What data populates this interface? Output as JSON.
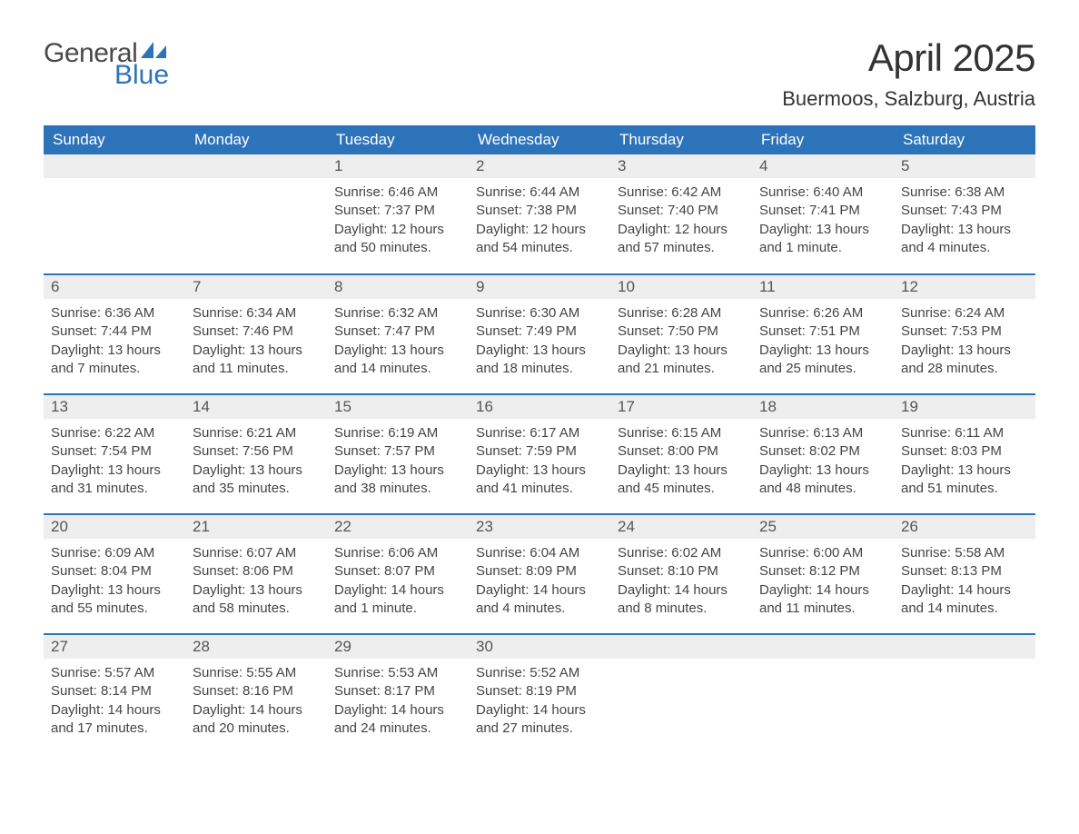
{
  "logo": {
    "word_general": "General",
    "word_blue": "Blue"
  },
  "title": {
    "month": "April 2025",
    "location": "Buermoos, Salzburg, Austria"
  },
  "colors": {
    "header_bg": "#2d73b9",
    "header_text": "#ffffff",
    "daynum_bg": "#eeeeee",
    "week_border": "#2d73b9",
    "body_text": "#444444",
    "page_bg": "#ffffff"
  },
  "calendar": {
    "day_headers": [
      "Sunday",
      "Monday",
      "Tuesday",
      "Wednesday",
      "Thursday",
      "Friday",
      "Saturday"
    ],
    "weeks": [
      [
        {
          "num": "",
          "sunrise": "",
          "sunset": "",
          "daylight": ""
        },
        {
          "num": "",
          "sunrise": "",
          "sunset": "",
          "daylight": ""
        },
        {
          "num": "1",
          "sunrise": "Sunrise: 6:46 AM",
          "sunset": "Sunset: 7:37 PM",
          "daylight": "Daylight: 12 hours and 50 minutes."
        },
        {
          "num": "2",
          "sunrise": "Sunrise: 6:44 AM",
          "sunset": "Sunset: 7:38 PM",
          "daylight": "Daylight: 12 hours and 54 minutes."
        },
        {
          "num": "3",
          "sunrise": "Sunrise: 6:42 AM",
          "sunset": "Sunset: 7:40 PM",
          "daylight": "Daylight: 12 hours and 57 minutes."
        },
        {
          "num": "4",
          "sunrise": "Sunrise: 6:40 AM",
          "sunset": "Sunset: 7:41 PM",
          "daylight": "Daylight: 13 hours and 1 minute."
        },
        {
          "num": "5",
          "sunrise": "Sunrise: 6:38 AM",
          "sunset": "Sunset: 7:43 PM",
          "daylight": "Daylight: 13 hours and 4 minutes."
        }
      ],
      [
        {
          "num": "6",
          "sunrise": "Sunrise: 6:36 AM",
          "sunset": "Sunset: 7:44 PM",
          "daylight": "Daylight: 13 hours and 7 minutes."
        },
        {
          "num": "7",
          "sunrise": "Sunrise: 6:34 AM",
          "sunset": "Sunset: 7:46 PM",
          "daylight": "Daylight: 13 hours and 11 minutes."
        },
        {
          "num": "8",
          "sunrise": "Sunrise: 6:32 AM",
          "sunset": "Sunset: 7:47 PM",
          "daylight": "Daylight: 13 hours and 14 minutes."
        },
        {
          "num": "9",
          "sunrise": "Sunrise: 6:30 AM",
          "sunset": "Sunset: 7:49 PM",
          "daylight": "Daylight: 13 hours and 18 minutes."
        },
        {
          "num": "10",
          "sunrise": "Sunrise: 6:28 AM",
          "sunset": "Sunset: 7:50 PM",
          "daylight": "Daylight: 13 hours and 21 minutes."
        },
        {
          "num": "11",
          "sunrise": "Sunrise: 6:26 AM",
          "sunset": "Sunset: 7:51 PM",
          "daylight": "Daylight: 13 hours and 25 minutes."
        },
        {
          "num": "12",
          "sunrise": "Sunrise: 6:24 AM",
          "sunset": "Sunset: 7:53 PM",
          "daylight": "Daylight: 13 hours and 28 minutes."
        }
      ],
      [
        {
          "num": "13",
          "sunrise": "Sunrise: 6:22 AM",
          "sunset": "Sunset: 7:54 PM",
          "daylight": "Daylight: 13 hours and 31 minutes."
        },
        {
          "num": "14",
          "sunrise": "Sunrise: 6:21 AM",
          "sunset": "Sunset: 7:56 PM",
          "daylight": "Daylight: 13 hours and 35 minutes."
        },
        {
          "num": "15",
          "sunrise": "Sunrise: 6:19 AM",
          "sunset": "Sunset: 7:57 PM",
          "daylight": "Daylight: 13 hours and 38 minutes."
        },
        {
          "num": "16",
          "sunrise": "Sunrise: 6:17 AM",
          "sunset": "Sunset: 7:59 PM",
          "daylight": "Daylight: 13 hours and 41 minutes."
        },
        {
          "num": "17",
          "sunrise": "Sunrise: 6:15 AM",
          "sunset": "Sunset: 8:00 PM",
          "daylight": "Daylight: 13 hours and 45 minutes."
        },
        {
          "num": "18",
          "sunrise": "Sunrise: 6:13 AM",
          "sunset": "Sunset: 8:02 PM",
          "daylight": "Daylight: 13 hours and 48 minutes."
        },
        {
          "num": "19",
          "sunrise": "Sunrise: 6:11 AM",
          "sunset": "Sunset: 8:03 PM",
          "daylight": "Daylight: 13 hours and 51 minutes."
        }
      ],
      [
        {
          "num": "20",
          "sunrise": "Sunrise: 6:09 AM",
          "sunset": "Sunset: 8:04 PM",
          "daylight": "Daylight: 13 hours and 55 minutes."
        },
        {
          "num": "21",
          "sunrise": "Sunrise: 6:07 AM",
          "sunset": "Sunset: 8:06 PM",
          "daylight": "Daylight: 13 hours and 58 minutes."
        },
        {
          "num": "22",
          "sunrise": "Sunrise: 6:06 AM",
          "sunset": "Sunset: 8:07 PM",
          "daylight": "Daylight: 14 hours and 1 minute."
        },
        {
          "num": "23",
          "sunrise": "Sunrise: 6:04 AM",
          "sunset": "Sunset: 8:09 PM",
          "daylight": "Daylight: 14 hours and 4 minutes."
        },
        {
          "num": "24",
          "sunrise": "Sunrise: 6:02 AM",
          "sunset": "Sunset: 8:10 PM",
          "daylight": "Daylight: 14 hours and 8 minutes."
        },
        {
          "num": "25",
          "sunrise": "Sunrise: 6:00 AM",
          "sunset": "Sunset: 8:12 PM",
          "daylight": "Daylight: 14 hours and 11 minutes."
        },
        {
          "num": "26",
          "sunrise": "Sunrise: 5:58 AM",
          "sunset": "Sunset: 8:13 PM",
          "daylight": "Daylight: 14 hours and 14 minutes."
        }
      ],
      [
        {
          "num": "27",
          "sunrise": "Sunrise: 5:57 AM",
          "sunset": "Sunset: 8:14 PM",
          "daylight": "Daylight: 14 hours and 17 minutes."
        },
        {
          "num": "28",
          "sunrise": "Sunrise: 5:55 AM",
          "sunset": "Sunset: 8:16 PM",
          "daylight": "Daylight: 14 hours and 20 minutes."
        },
        {
          "num": "29",
          "sunrise": "Sunrise: 5:53 AM",
          "sunset": "Sunset: 8:17 PM",
          "daylight": "Daylight: 14 hours and 24 minutes."
        },
        {
          "num": "30",
          "sunrise": "Sunrise: 5:52 AM",
          "sunset": "Sunset: 8:19 PM",
          "daylight": "Daylight: 14 hours and 27 minutes."
        },
        {
          "num": "",
          "sunrise": "",
          "sunset": "",
          "daylight": ""
        },
        {
          "num": "",
          "sunrise": "",
          "sunset": "",
          "daylight": ""
        },
        {
          "num": "",
          "sunrise": "",
          "sunset": "",
          "daylight": ""
        }
      ]
    ]
  }
}
